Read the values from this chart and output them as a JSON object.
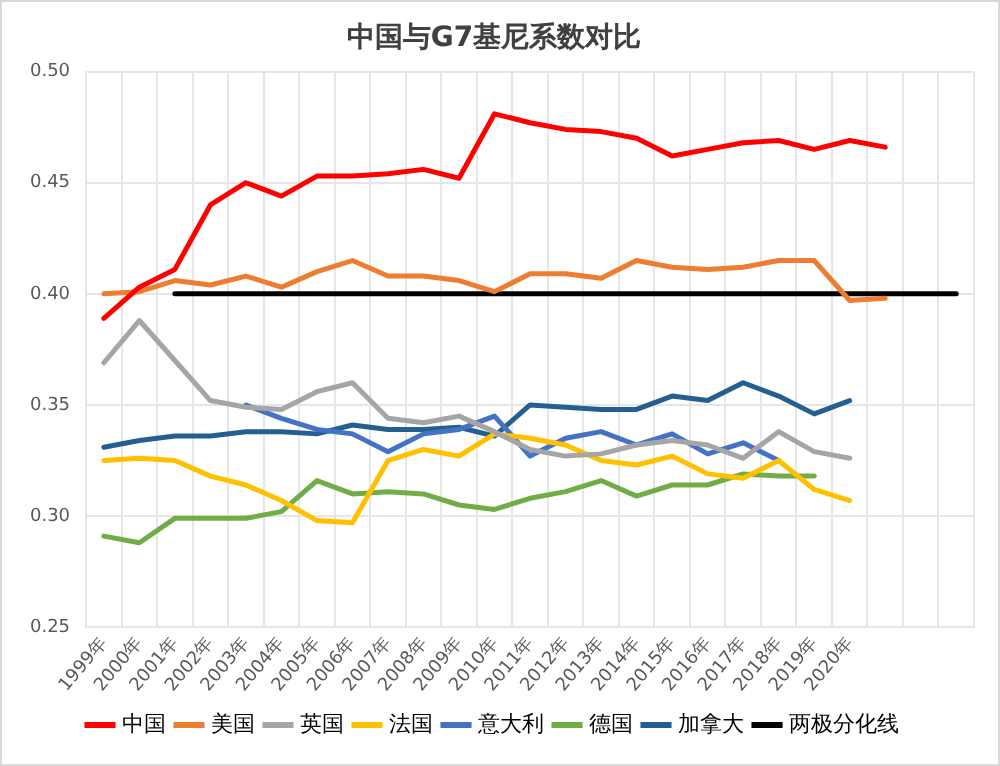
{
  "chart_data": {
    "type": "line",
    "title": "中国与G7基尼系数对比",
    "categories": [
      "1999年",
      "2000年",
      "2001年",
      "2002年",
      "2003年",
      "2004年",
      "2005年",
      "2006年",
      "2007年",
      "2008年",
      "2009年",
      "2010年",
      "2011年",
      "2012年",
      "2013年",
      "2014年",
      "2015年",
      "2016年",
      "2017年",
      "2018年",
      "2019年",
      "2020年",
      null,
      null,
      null
    ],
    "series": [
      {
        "name": "中国",
        "color": "#ff0000",
        "values": [
          0.389,
          0.403,
          0.411,
          0.44,
          0.45,
          0.444,
          0.453,
          0.453,
          0.454,
          0.456,
          0.452,
          0.481,
          0.477,
          0.474,
          0.473,
          0.47,
          0.462,
          0.465,
          0.468,
          0.469,
          0.465,
          0.469,
          0.466,
          null,
          null
        ]
      },
      {
        "name": "美国",
        "color": "#ed7d31",
        "values": [
          0.4,
          0.401,
          0.406,
          0.404,
          0.408,
          0.403,
          0.41,
          0.415,
          0.408,
          0.408,
          0.406,
          0.401,
          0.409,
          0.409,
          0.407,
          0.415,
          0.412,
          0.411,
          0.412,
          0.415,
          0.415,
          0.397,
          0.398,
          null,
          null
        ]
      },
      {
        "name": "英国",
        "color": "#a5a5a5",
        "values": [
          0.369,
          0.388,
          0.37,
          0.352,
          0.349,
          0.348,
          0.356,
          0.36,
          0.344,
          0.342,
          0.345,
          0.338,
          0.33,
          0.327,
          0.328,
          0.332,
          0.334,
          0.332,
          0.326,
          0.338,
          0.329,
          0.326,
          null,
          null,
          null
        ]
      },
      {
        "name": "法国",
        "color": "#ffc000",
        "values": [
          0.325,
          0.326,
          0.325,
          0.318,
          0.314,
          0.307,
          0.298,
          0.297,
          0.325,
          0.33,
          0.327,
          0.337,
          0.335,
          0.332,
          0.325,
          0.323,
          0.327,
          0.319,
          0.317,
          0.325,
          0.312,
          0.307,
          null,
          null,
          null
        ]
      },
      {
        "name": "意大利",
        "color": "#4472c4",
        "values": [
          null,
          null,
          null,
          null,
          0.35,
          0.344,
          0.339,
          0.337,
          0.329,
          0.337,
          0.339,
          0.345,
          0.327,
          0.335,
          0.338,
          0.332,
          0.337,
          0.328,
          0.333,
          0.325,
          null,
          null,
          null,
          null,
          null
        ]
      },
      {
        "name": "德国",
        "color": "#70ad47",
        "values": [
          0.291,
          0.288,
          0.299,
          0.299,
          0.299,
          0.302,
          0.316,
          0.31,
          0.311,
          0.31,
          0.305,
          0.303,
          0.308,
          0.311,
          0.316,
          0.309,
          0.314,
          0.314,
          0.319,
          0.318,
          0.318,
          null,
          null,
          null,
          null
        ]
      },
      {
        "name": "加拿大",
        "color": "#255e91",
        "values": [
          0.331,
          0.334,
          0.336,
          0.336,
          0.338,
          0.338,
          0.337,
          0.341,
          0.339,
          0.339,
          0.34,
          0.336,
          0.35,
          0.349,
          0.348,
          0.348,
          0.354,
          0.352,
          0.36,
          0.354,
          0.346,
          0.352,
          null,
          null,
          null
        ]
      },
      {
        "name": "两极分化线",
        "color": "#000000",
        "values": [
          null,
          null,
          0.4,
          0.4,
          0.4,
          0.4,
          0.4,
          0.4,
          0.4,
          0.4,
          0.4,
          0.4,
          0.4,
          0.4,
          0.4,
          0.4,
          0.4,
          0.4,
          0.4,
          0.4,
          0.4,
          0.4,
          0.4,
          0.4,
          0.4
        ]
      }
    ],
    "ylim": [
      0.25,
      0.5
    ],
    "yticks": [
      {
        "value": 0.25,
        "label": "0.25"
      },
      {
        "value": 0.3,
        "label": "0.30"
      },
      {
        "value": 0.35,
        "label": "0.35"
      },
      {
        "value": 0.4,
        "label": "0.40"
      },
      {
        "value": 0.45,
        "label": "0.45"
      },
      {
        "value": 0.5,
        "label": "0.50"
      }
    ],
    "grid": true,
    "legend": "bottom",
    "marker": "none",
    "line_style": "solid"
  }
}
